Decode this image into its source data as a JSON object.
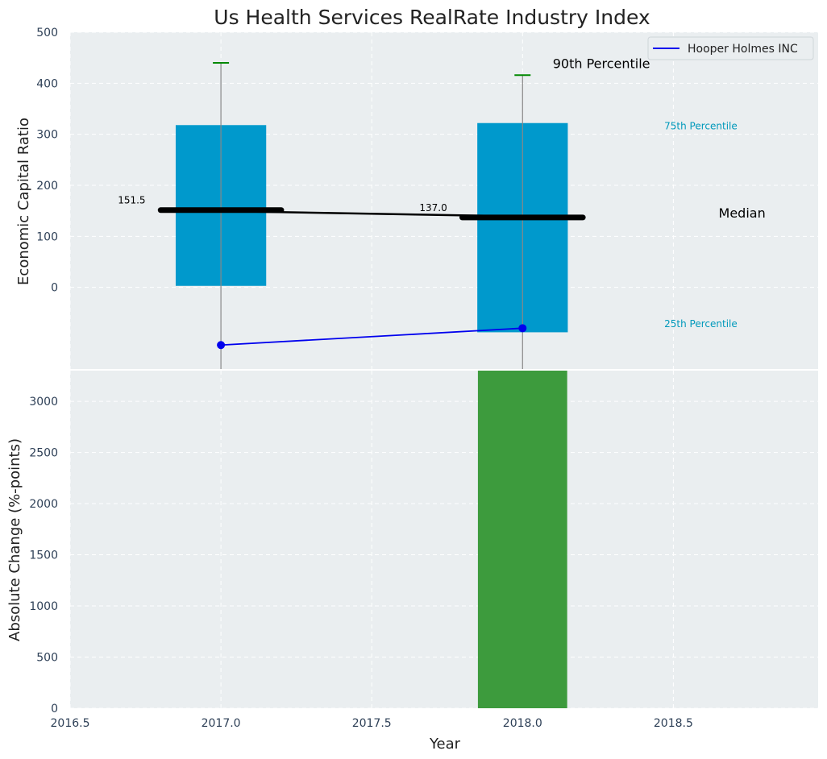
{
  "chart_data": [
    {
      "type": "box-range",
      "title": "Us Health Services RealRate Industry Index",
      "xlabel": "",
      "ylabel": "Economic Capital Ratio",
      "xlim": [
        2016.5,
        2018.98
      ],
      "ylim": [
        -160,
        500
      ],
      "yticks": [
        0,
        100,
        200,
        300,
        400,
        500
      ],
      "grid": true,
      "legend": {
        "location": "top-right",
        "entries": [
          {
            "label": "Hooper Holmes INC",
            "color": "#0000ee"
          }
        ]
      },
      "boxes": [
        {
          "year": 2017.0,
          "p25": 3,
          "p75": 318,
          "median": 151.5,
          "p90": 440,
          "median_label": "151.5"
        },
        {
          "year": 2018.0,
          "p25": -88,
          "p75": 322,
          "median": 137.0,
          "p90": 416,
          "median_label": "137.0"
        }
      ],
      "whisker_bottom": -160,
      "company_series": {
        "name": "Hooper Holmes INC",
        "x": [
          2017.0,
          2018.0
        ],
        "y": [
          -113,
          -80
        ]
      },
      "annotations": {
        "p90": "90th Percentile",
        "p75": "75th Percentile",
        "median": "Median",
        "p25": "25th Percentile"
      },
      "annotation_y": {
        "p90": 430,
        "p75": 310,
        "median": 137,
        "p25": -78
      },
      "colors": {
        "box": "#0099cc",
        "whisker": "#888888",
        "p90_cap": "#008800",
        "median": "#000000",
        "company": "#0000ee",
        "annotation_cyan": "#0099bb"
      }
    },
    {
      "type": "bar",
      "title": "",
      "xlabel": "Year",
      "ylabel": "Absolute Change (%-points)",
      "xlim": [
        2016.5,
        2018.98
      ],
      "ylim": [
        0,
        3300
      ],
      "xticks": [
        2016.5,
        2017.0,
        2017.5,
        2018.0,
        2018.5
      ],
      "xtick_labels": [
        "2016.5",
        "2017.0",
        "2017.5",
        "2018.0",
        "2018.5"
      ],
      "yticks": [
        0,
        500,
        1000,
        1500,
        2000,
        2500,
        3000
      ],
      "grid": true,
      "bars": [
        {
          "x": 2018.0,
          "value": 3300
        }
      ],
      "colors": {
        "bar": "#3d9b3d"
      }
    }
  ]
}
